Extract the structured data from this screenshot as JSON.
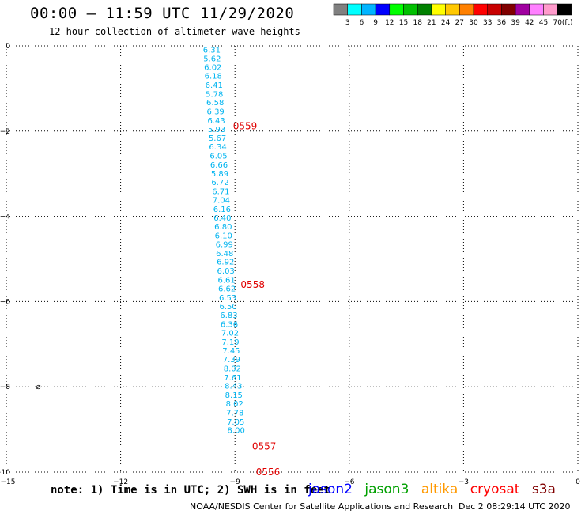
{
  "header": {
    "title": "00:00 – 11:59 UTC 11/29/2020",
    "subtitle": "12 hour collection of altimeter wave heights"
  },
  "legend": {
    "colors": [
      "#808080",
      "#00ffff",
      "#00b4ff",
      "#0000ff",
      "#00ff00",
      "#00c000",
      "#008000",
      "#ffff00",
      "#ffc800",
      "#ff8000",
      "#ff0000",
      "#c80000",
      "#800000",
      "#a000a0",
      "#ff80ff",
      "#ff9bcc",
      "#000000"
    ],
    "labels": [
      "3",
      "6",
      "9",
      "12",
      "15",
      "18",
      "21",
      "24",
      "27",
      "30",
      "33",
      "36",
      "39",
      "42",
      "45",
      "70"
    ],
    "unit": "(ft)"
  },
  "chart_data": {
    "type": "scatter",
    "xlim": [
      -15,
      0
    ],
    "ylim": [
      -10,
      0
    ],
    "xticks": [
      "−15",
      "−12",
      "−9",
      "−6",
      "−3",
      "0"
    ],
    "yticks": [
      "0",
      "−2",
      "−4",
      "−6",
      "−8",
      "−10"
    ],
    "grid": true,
    "series": [
      {
        "color": "#00b4f0",
        "points": [
          {
            "x": -9.84,
            "y": -0.08,
            "label": "6.31"
          },
          {
            "x": -9.83,
            "y": -0.29,
            "label": "5.62"
          },
          {
            "x": -9.81,
            "y": -0.49,
            "label": "6.02"
          },
          {
            "x": -9.8,
            "y": -0.7,
            "label": "6.18"
          },
          {
            "x": -9.78,
            "y": -0.91,
            "label": "6.41"
          },
          {
            "x": -9.77,
            "y": -1.12,
            "label": "5.78"
          },
          {
            "x": -9.75,
            "y": -1.32,
            "label": "6.58"
          },
          {
            "x": -9.74,
            "y": -1.53,
            "label": "6.39"
          },
          {
            "x": -9.72,
            "y": -1.74,
            "label": "6.43"
          },
          {
            "x": -9.71,
            "y": -1.95,
            "label": "5.93"
          },
          {
            "x": -9.69,
            "y": -2.15,
            "label": "5.67"
          },
          {
            "x": -9.68,
            "y": -2.36,
            "label": "6.34"
          },
          {
            "x": -9.66,
            "y": -2.57,
            "label": "6.05"
          },
          {
            "x": -9.65,
            "y": -2.78,
            "label": "6.66"
          },
          {
            "x": -9.63,
            "y": -2.99,
            "label": "5.89"
          },
          {
            "x": -9.62,
            "y": -3.19,
            "label": "6.72"
          },
          {
            "x": -9.6,
            "y": -3.4,
            "label": "6.71"
          },
          {
            "x": -9.59,
            "y": -3.61,
            "label": "7.04"
          },
          {
            "x": -9.57,
            "y": -3.82,
            "label": "6.16"
          },
          {
            "x": -9.56,
            "y": -4.03,
            "label": "6.40"
          },
          {
            "x": -9.54,
            "y": -4.23,
            "label": "6.80"
          },
          {
            "x": -9.53,
            "y": -4.44,
            "label": "6.10"
          },
          {
            "x": -9.51,
            "y": -4.65,
            "label": "6.99"
          },
          {
            "x": -9.5,
            "y": -4.86,
            "label": "6.48"
          },
          {
            "x": -9.48,
            "y": -5.06,
            "label": "6.92"
          },
          {
            "x": -9.47,
            "y": -5.27,
            "label": "6.03"
          },
          {
            "x": -9.45,
            "y": -5.48,
            "label": "6.61"
          },
          {
            "x": -9.44,
            "y": -5.69,
            "label": "6.62"
          },
          {
            "x": -9.42,
            "y": -5.9,
            "label": "6.53"
          },
          {
            "x": -9.41,
            "y": -6.1,
            "label": "6.50"
          },
          {
            "x": -9.39,
            "y": -6.31,
            "label": "6.83"
          },
          {
            "x": -9.38,
            "y": -6.52,
            "label": "6.36"
          },
          {
            "x": -9.36,
            "y": -6.73,
            "label": "7.02"
          },
          {
            "x": -9.35,
            "y": -6.94,
            "label": "7.19"
          },
          {
            "x": -9.33,
            "y": -7.14,
            "label": "7.45"
          },
          {
            "x": -9.32,
            "y": -7.35,
            "label": "7.39"
          },
          {
            "x": -9.3,
            "y": -7.56,
            "label": "8.02"
          },
          {
            "x": -9.29,
            "y": -7.77,
            "label": "7.61"
          },
          {
            "x": -9.27,
            "y": -7.97,
            "label": "8.43"
          },
          {
            "x": -9.26,
            "y": -8.18,
            "label": "8.15"
          },
          {
            "x": -9.24,
            "y": -8.39,
            "label": "8.02"
          },
          {
            "x": -9.23,
            "y": -8.6,
            "label": "7.78"
          },
          {
            "x": -9.21,
            "y": -8.81,
            "label": "7.05"
          },
          {
            "x": -9.2,
            "y": -9.01,
            "label": "8.00"
          }
        ]
      }
    ],
    "annotations": [
      {
        "x": -9.05,
        "y": -1.88,
        "text": "0559",
        "color": "#e00000"
      },
      {
        "x": -8.85,
        "y": -5.6,
        "text": "0558",
        "color": "#e00000"
      },
      {
        "x": -8.55,
        "y": -9.4,
        "text": "0557",
        "color": "#e00000"
      },
      {
        "x": -8.45,
        "y": -10.0,
        "text": "0556",
        "color": "#e00000"
      }
    ],
    "markers": [
      {
        "x": -14.8,
        "y": -7.98,
        "text": "⌀"
      }
    ]
  },
  "footer": {
    "note": "note: 1) Time is in UTC; 2) SWH is in feet",
    "missions": [
      {
        "name": "jason2",
        "color": "#0000ff"
      },
      {
        "name": "jason3",
        "color": "#00a000"
      },
      {
        "name": "altika",
        "color": "#ff9900"
      },
      {
        "name": "cryosat",
        "color": "#ff0000"
      },
      {
        "name": "s3a",
        "color": "#800000"
      }
    ],
    "credit": "NOAA/NESDIS Center for Satellite Applications and Research",
    "timestamp": "Dec  2 08:29:14 UTC 2020"
  }
}
